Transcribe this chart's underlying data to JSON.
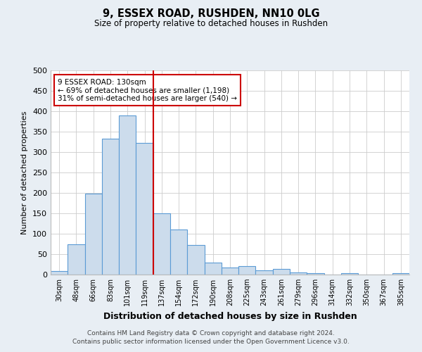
{
  "title1": "9, ESSEX ROAD, RUSHDEN, NN10 0LG",
  "title2": "Size of property relative to detached houses in Rushden",
  "xlabel": "Distribution of detached houses by size in Rushden",
  "ylabel": "Number of detached properties",
  "categories": [
    "30sqm",
    "48sqm",
    "66sqm",
    "83sqm",
    "101sqm",
    "119sqm",
    "137sqm",
    "154sqm",
    "172sqm",
    "190sqm",
    "208sqm",
    "225sqm",
    "243sqm",
    "261sqm",
    "279sqm",
    "296sqm",
    "314sqm",
    "332sqm",
    "350sqm",
    "367sqm",
    "385sqm"
  ],
  "values": [
    8,
    75,
    198,
    333,
    390,
    323,
    150,
    110,
    72,
    30,
    17,
    20,
    11,
    13,
    5,
    4,
    0,
    4,
    0,
    0,
    4
  ],
  "bar_color": "#ccdcec",
  "bar_edge_color": "#5b9bd5",
  "vline_x": 5.5,
  "vline_color": "#cc0000",
  "annotation_text": "9 ESSEX ROAD: 130sqm\n← 69% of detached houses are smaller (1,198)\n31% of semi-detached houses are larger (540) →",
  "annotation_box_color": "#ffffff",
  "annotation_box_edge": "#cc0000",
  "ylim": [
    0,
    500
  ],
  "yticks": [
    0,
    50,
    100,
    150,
    200,
    250,
    300,
    350,
    400,
    450,
    500
  ],
  "footer1": "Contains HM Land Registry data © Crown copyright and database right 2024.",
  "footer2": "Contains public sector information licensed under the Open Government Licence v3.0.",
  "fig_bg_color": "#e8eef4",
  "plot_bg_color": "#ffffff",
  "grid_color": "#cccccc"
}
